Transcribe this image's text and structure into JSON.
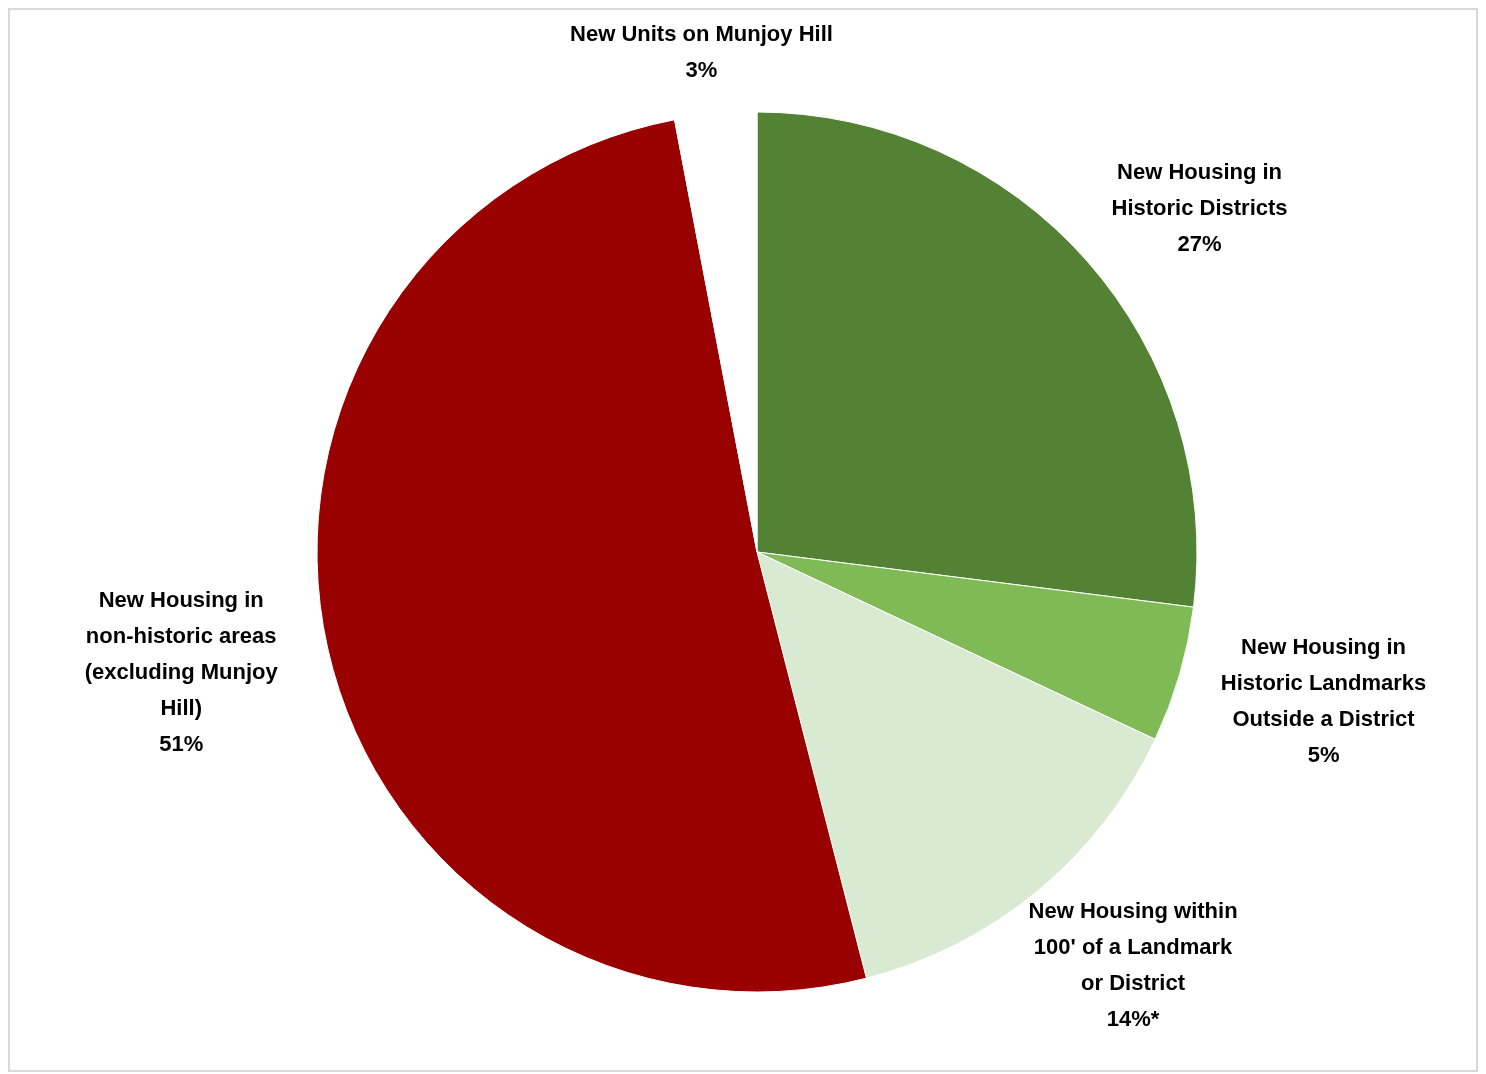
{
  "chart_data": {
    "type": "pie",
    "categories": [
      "New Housing in Historic Districts",
      "New Housing in Historic Landmarks Outside a District",
      "New Housing within 100' of a Landmark or District",
      "New Housing in non-historic areas (excluding Munjoy Hill)",
      "New Units on Munjoy Hill"
    ],
    "values": [
      27,
      5,
      14,
      51,
      3
    ],
    "value_labels": [
      "27%",
      "5%",
      "14%*",
      "51%",
      "3%"
    ],
    "colors": [
      "#548235",
      "#7fba57",
      "#d9ead3",
      "#990000",
      "#ffffff"
    ]
  }
}
